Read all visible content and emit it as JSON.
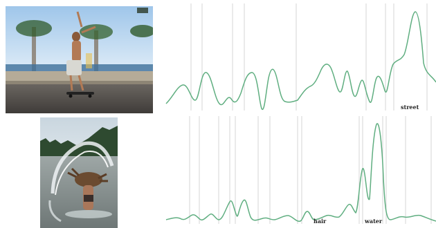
{
  "panels": [
    {
      "image": "skateboarder-on-street",
      "word_labels": [
        "street"
      ],
      "plot_color": "#5fae80",
      "gridline_color": "#d6d6d6"
    },
    {
      "image": "person-flipping-wet-hair-in-water",
      "word_labels": [
        "hair",
        "water"
      ],
      "plot_color": "#5fae80",
      "gridline_color": "#d6d6d6"
    }
  ]
}
